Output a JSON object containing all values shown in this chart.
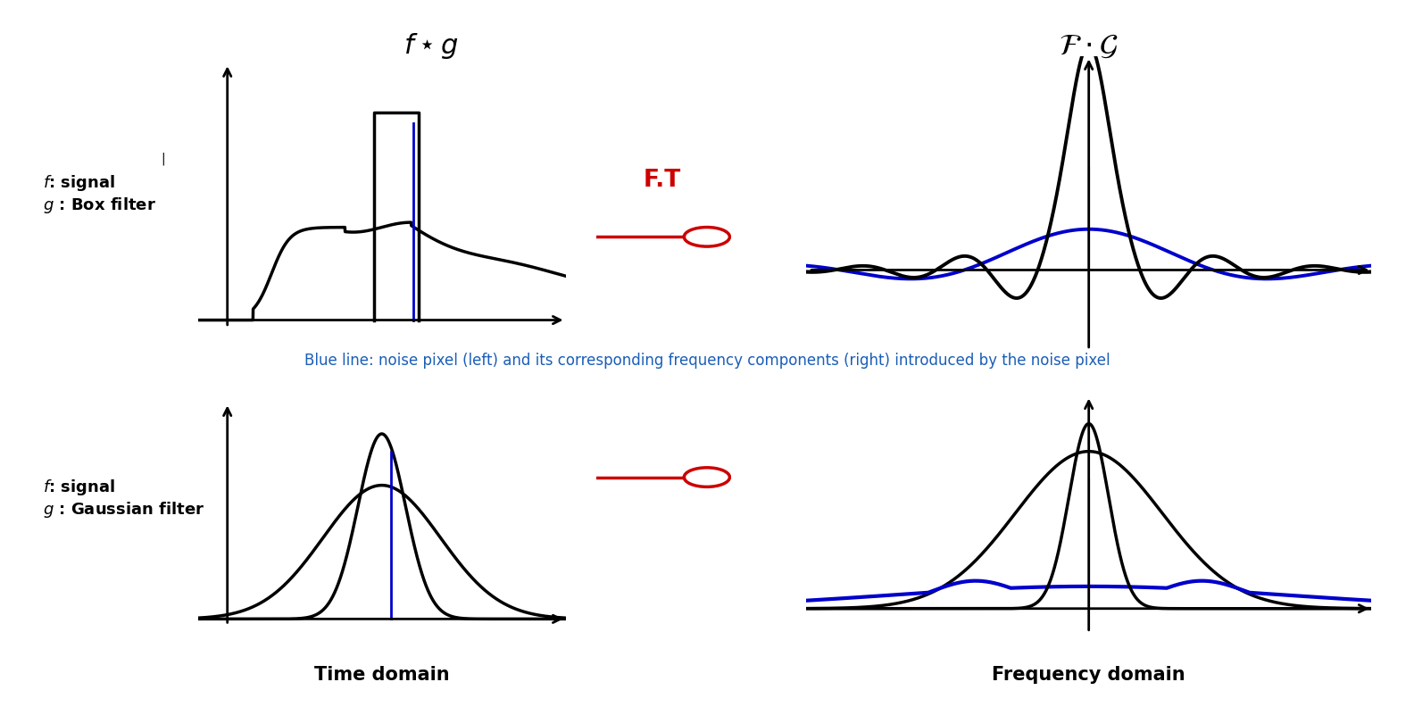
{
  "bg_color": "#ffffff",
  "ft_color": "#cc0000",
  "blue_text_color": "#1a5eb8",
  "blue_caption": "Blue line: noise pixel (left) and its corresponding frequency components (right) introduced by the noise pixel",
  "xlabel_left": "Time domain",
  "xlabel_right": "Frequency domain",
  "black": "#000000",
  "blue": "#0000cc",
  "red": "#cc0000"
}
